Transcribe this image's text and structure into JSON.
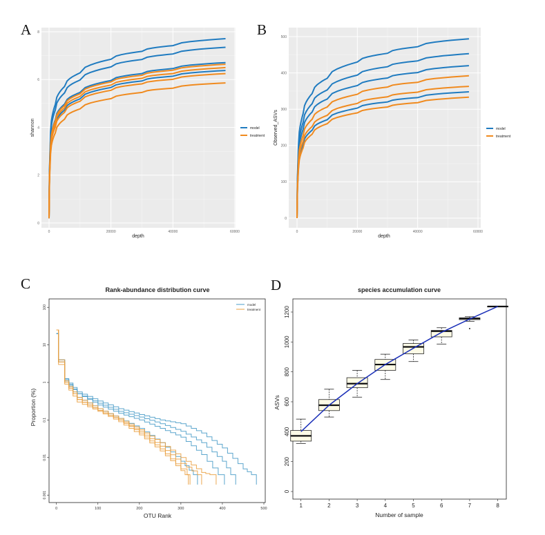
{
  "colors": {
    "model": "#1f7bc0",
    "treatment": "#f08a1e",
    "model_c": "#4a9cc8",
    "treatment_c": "#eaa040",
    "accum_line": "#1a2fb8",
    "box_fill": "#fdfbe6"
  },
  "chart_data": [
    {
      "panel": "A",
      "type": "line",
      "xlabel": "depth",
      "ylabel": "shannon",
      "xlim": [
        0,
        60000
      ],
      "ylim": [
        0,
        8
      ],
      "xticks": [
        "0",
        "20000",
        "40000",
        "60000"
      ],
      "xtick_values": [
        0,
        20000,
        40000,
        60000
      ],
      "yticks": [
        "0",
        "2",
        "4",
        "6",
        "8"
      ],
      "ytick_values": [
        0,
        2,
        4,
        6,
        8
      ],
      "legend": [
        "model",
        "treatment"
      ],
      "legend_position": "right",
      "x": [
        0,
        500,
        2000,
        5000,
        10000,
        20000,
        30000,
        40000,
        57000
      ],
      "series": [
        {
          "group": "model",
          "values": [
            0.2,
            3.81,
            4.95,
            5.71,
            6.28,
            6.85,
            7.18,
            7.42,
            7.71
          ]
        },
        {
          "group": "model",
          "values": [
            0.2,
            3.63,
            4.72,
            5.44,
            5.98,
            6.53,
            6.84,
            7.07,
            7.35
          ]
        },
        {
          "group": "model",
          "values": [
            0.2,
            3.31,
            4.31,
            4.97,
            5.46,
            5.96,
            6.25,
            6.46,
            6.71
          ]
        },
        {
          "group": "model",
          "values": [
            0.2,
            3.15,
            4.1,
            4.72,
            5.19,
            5.67,
            5.94,
            6.14,
            6.38
          ]
        },
        {
          "group": "treatment",
          "values": [
            0.2,
            3.28,
            4.26,
            4.91,
            5.4,
            5.9,
            6.18,
            6.39,
            6.64
          ]
        },
        {
          "group": "treatment",
          "values": [
            0.2,
            3.21,
            4.17,
            4.81,
            5.29,
            5.77,
            6.05,
            6.25,
            6.5
          ]
        },
        {
          "group": "treatment",
          "values": [
            0.2,
            3.09,
            4.01,
            4.63,
            5.09,
            5.55,
            5.82,
            6.01,
            6.25
          ]
        },
        {
          "group": "treatment",
          "values": [
            0.2,
            2.89,
            3.76,
            4.34,
            4.77,
            5.2,
            5.46,
            5.64,
            5.86
          ]
        }
      ]
    },
    {
      "panel": "B",
      "type": "line",
      "xlabel": "depth",
      "ylabel": "Observed_ASVs",
      "xlim": [
        0,
        60000
      ],
      "ylim": [
        0,
        500
      ],
      "xticks": [
        "0",
        "20000",
        "40000",
        "60000"
      ],
      "xtick_values": [
        0,
        20000,
        40000,
        60000
      ],
      "yticks": [
        "0",
        "100",
        "200",
        "300",
        "400",
        "500"
      ],
      "ytick_values": [
        0,
        100,
        200,
        300,
        400,
        500
      ],
      "legend": [
        "model",
        "treatment"
      ],
      "legend_position": "right",
      "x": [
        0,
        500,
        2000,
        5000,
        10000,
        20000,
        30000,
        40000,
        57000
      ],
      "series": [
        {
          "group": "model",
          "values": [
            0,
            203,
            287,
            343,
            385,
            430,
            454,
            472,
            494
          ]
        },
        {
          "group": "model",
          "values": [
            0,
            186,
            263,
            315,
            353,
            394,
            417,
            433,
            453
          ]
        },
        {
          "group": "model",
          "values": [
            0,
            172,
            244,
            292,
            328,
            365,
            386,
            401,
            420
          ]
        },
        {
          "group": "model",
          "values": [
            0,
            143,
            202,
            242,
            271,
            303,
            320,
            332,
            348
          ]
        },
        {
          "group": "treatment",
          "values": [
            0,
            161,
            227,
            272,
            306,
            341,
            361,
            374,
            392
          ]
        },
        {
          "group": "treatment",
          "values": [
            0,
            149,
            211,
            252,
            283,
            316,
            334,
            347,
            363
          ]
        },
        {
          "group": "treatment",
          "values": [
            0,
            137,
            193,
            231,
            260,
            290,
            306,
            318,
            333
          ]
        }
      ]
    },
    {
      "panel": "C",
      "type": "line",
      "title": "Rank-abundance distribution curve",
      "xlabel": "OTU Rank",
      "ylabel": "Proportion (%)",
      "xlim": [
        0,
        500
      ],
      "ylim_log10": [
        -3,
        2
      ],
      "xticks": [
        "0",
        "100",
        "200",
        "300",
        "400",
        "500"
      ],
      "xtick_values": [
        0,
        100,
        200,
        300,
        400,
        500
      ],
      "yticks": [
        "100",
        "10",
        "1",
        "0.1",
        "0.01",
        "0.001"
      ],
      "ytick_values": [
        100,
        10,
        1,
        0.1,
        0.01,
        0.001
      ],
      "legend": [
        "model",
        "treatment"
      ],
      "legend_position": "top-right",
      "series": [
        {
          "group": "model",
          "x": [
            0,
            5,
            20,
            50,
            100,
            150,
            200,
            250,
            300,
            350,
            400,
            450,
            470,
            482
          ],
          "values": [
            20,
            4,
            1.26,
            0.56,
            0.32,
            0.2,
            0.14,
            0.1,
            0.08,
            0.045,
            0.018,
            0.005,
            0.0035,
            0.0019
          ]
        },
        {
          "group": "model",
          "x": [
            0,
            5,
            20,
            50,
            100,
            150,
            200,
            250,
            300,
            350,
            400,
            420,
            432
          ],
          "values": [
            20,
            4,
            1.2,
            0.5,
            0.28,
            0.17,
            0.12,
            0.08,
            0.05,
            0.025,
            0.008,
            0.0035,
            0.0019
          ]
        },
        {
          "group": "model",
          "x": [
            0,
            5,
            20,
            50,
            100,
            150,
            200,
            250,
            300,
            350,
            390,
            405
          ],
          "values": [
            20,
            3.5,
            1.1,
            0.5,
            0.25,
            0.15,
            0.1,
            0.06,
            0.035,
            0.012,
            0.0035,
            0.0019
          ]
        },
        {
          "group": "model",
          "x": [
            0,
            5,
            20,
            50,
            100,
            150,
            200,
            250,
            300,
            330,
            340
          ],
          "values": [
            20,
            3.5,
            1.1,
            0.4,
            0.2,
            0.11,
            0.06,
            0.025,
            0.008,
            0.0035,
            0.0019
          ]
        },
        {
          "group": "treatment",
          "x": [
            0,
            5,
            20,
            50,
            100,
            150,
            200,
            250,
            300,
            350,
            370,
            385
          ],
          "values": [
            25,
            4,
            1.1,
            0.4,
            0.2,
            0.11,
            0.055,
            0.025,
            0.01,
            0.004,
            0.0035,
            0.0019
          ]
        },
        {
          "group": "treatment",
          "x": [
            0,
            5,
            20,
            50,
            100,
            150,
            200,
            250,
            300,
            340,
            350
          ],
          "values": [
            25,
            3.5,
            1,
            0.35,
            0.18,
            0.1,
            0.05,
            0.02,
            0.007,
            0.0035,
            0.0019
          ]
        },
        {
          "group": "treatment",
          "x": [
            0,
            5,
            20,
            50,
            100,
            150,
            200,
            250,
            300,
            315,
            322
          ],
          "values": [
            25,
            3.5,
            1,
            0.35,
            0.18,
            0.1,
            0.045,
            0.017,
            0.005,
            0.0035,
            0.0019
          ]
        },
        {
          "group": "treatment",
          "x": [
            0,
            5,
            20,
            50,
            100,
            150,
            200,
            250,
            300,
            310,
            318
          ],
          "values": [
            25,
            3,
            0.9,
            0.3,
            0.17,
            0.09,
            0.04,
            0.015,
            0.0045,
            0.0035,
            0.0019
          ]
        }
      ]
    },
    {
      "panel": "D",
      "type": "box",
      "title": "species accumulation curve",
      "xlabel": "Number of sample",
      "ylabel": "ASVs",
      "ylim": [
        0,
        1250
      ],
      "categories": [
        "1",
        "2",
        "3",
        "4",
        "5",
        "6",
        "7",
        "8"
      ],
      "yticks": [
        "0",
        "200",
        "400",
        "600",
        "800",
        "1000",
        "1200"
      ],
      "ytick_values": [
        0,
        200,
        400,
        600,
        800,
        1000,
        1200
      ],
      "boxes": [
        {
          "min": 321,
          "q1": 337,
          "median": 372,
          "q3": 408,
          "max": 484,
          "outliers": []
        },
        {
          "min": 498,
          "q1": 541,
          "median": 577,
          "q3": 615,
          "max": 684,
          "outliers": []
        },
        {
          "min": 631,
          "q1": 694,
          "median": 721,
          "q3": 761,
          "max": 810,
          "outliers": []
        },
        {
          "min": 749,
          "q1": 810,
          "median": 849,
          "q3": 883,
          "max": 918,
          "outliers": []
        },
        {
          "min": 869,
          "q1": 921,
          "median": 967,
          "q3": 990,
          "max": 1013,
          "outliers": []
        },
        {
          "min": 986,
          "q1": 1034,
          "median": 1072,
          "q3": 1077,
          "max": 1095,
          "outliers": []
        },
        {
          "min": 1138,
          "q1": 1149,
          "median": 1157,
          "q3": 1161,
          "max": 1169,
          "outliers": [
            1089
          ]
        },
        {
          "min": 1237,
          "q1": 1237,
          "median": 1237,
          "q3": 1237,
          "max": 1237,
          "outliers": []
        }
      ],
      "accumulation": [
        400,
        577,
        721,
        849,
        958,
        1064,
        1153,
        1237
      ]
    }
  ],
  "panel_labels": [
    "A",
    "B",
    "C",
    "D"
  ]
}
